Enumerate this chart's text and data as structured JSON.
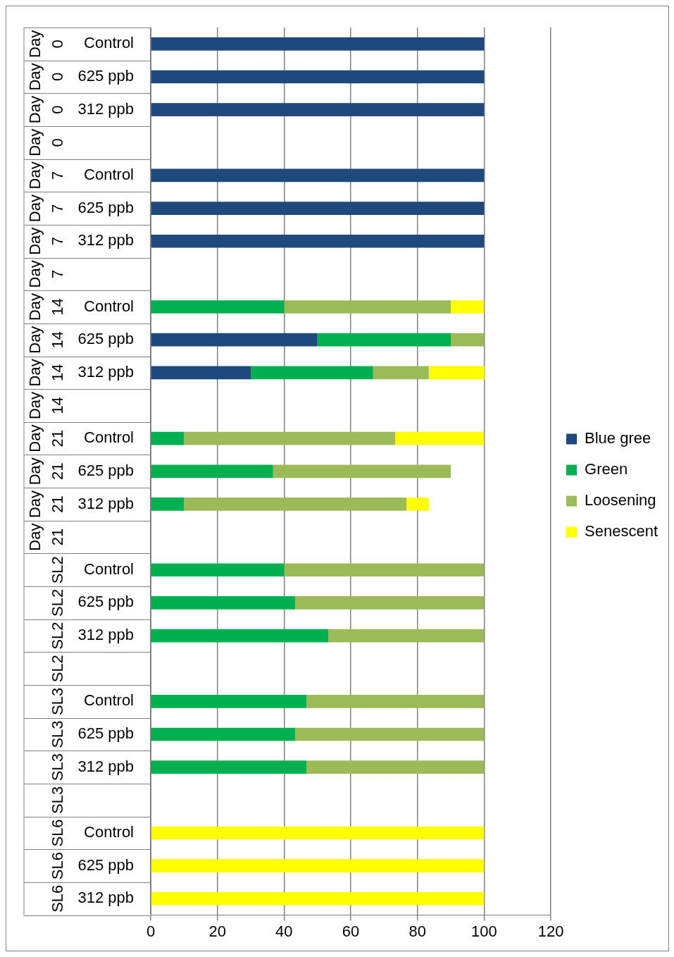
{
  "chart_data": {
    "type": "bar",
    "orientation": "horizontal",
    "stacked": true,
    "categories": [
      "Control",
      "625 ppb",
      "312 ppb",
      null,
      "Control",
      "625 ppb",
      "312 ppb",
      null,
      "Control",
      "625 ppb",
      "312 ppb",
      null,
      "Control",
      "625 ppb",
      "312 ppb",
      null,
      "Control",
      "625 ppb",
      "312 ppb",
      null,
      "Control",
      "625 ppb",
      "312 ppb",
      null,
      "Control",
      "625 ppb",
      "312 ppb"
    ],
    "y2_categories": [
      "Day 0",
      "Day 0",
      "Day 0",
      "Day 0",
      "Day 7",
      "Day 7",
      "Day 7",
      "Day 7",
      "Day 14",
      "Day 14",
      "Day 14",
      "Day 14",
      "Day 21",
      "Day 21",
      "Day 21",
      "Day 21",
      "SL2",
      "SL2",
      "SL2",
      "SL2",
      "SL3",
      "SL3",
      "SL3",
      "SL3",
      "SL6",
      "SL6",
      "SL6"
    ],
    "series": [
      {
        "name": "Blue gree",
        "color": "#1f497d",
        "values": [
          100,
          100,
          100,
          null,
          100,
          100,
          100,
          null,
          null,
          50,
          30,
          null,
          null,
          null,
          null,
          null,
          null,
          null,
          null,
          null,
          null,
          null,
          null,
          null,
          null,
          null,
          null
        ]
      },
      {
        "name": "Green",
        "color": "#00b050",
        "values": [
          null,
          null,
          null,
          null,
          null,
          null,
          null,
          null,
          40,
          40,
          36.7,
          null,
          10,
          36.7,
          10,
          null,
          40,
          43.3,
          53.3,
          null,
          46.7,
          43.3,
          46.7,
          null,
          null,
          null,
          null
        ]
      },
      {
        "name": "Loosening",
        "color": "#9bbb59",
        "values": [
          null,
          null,
          null,
          null,
          null,
          null,
          null,
          null,
          50,
          10,
          16.7,
          null,
          63.3,
          53.3,
          66.7,
          null,
          60,
          56.7,
          46.7,
          null,
          53.3,
          56.7,
          53.3,
          null,
          null,
          null,
          null
        ]
      },
      {
        "name": "Senescent",
        "color": "#ffff00",
        "values": [
          null,
          null,
          null,
          null,
          null,
          null,
          null,
          null,
          10,
          null,
          16.7,
          null,
          26.7,
          null,
          6.7,
          null,
          null,
          null,
          null,
          null,
          null,
          null,
          null,
          null,
          100,
          100,
          100
        ]
      }
    ],
    "xlim": [
      0,
      120
    ],
    "xticks": [
      0,
      20,
      40,
      60,
      80,
      100,
      120
    ],
    "grid": "x",
    "legend": "right"
  }
}
